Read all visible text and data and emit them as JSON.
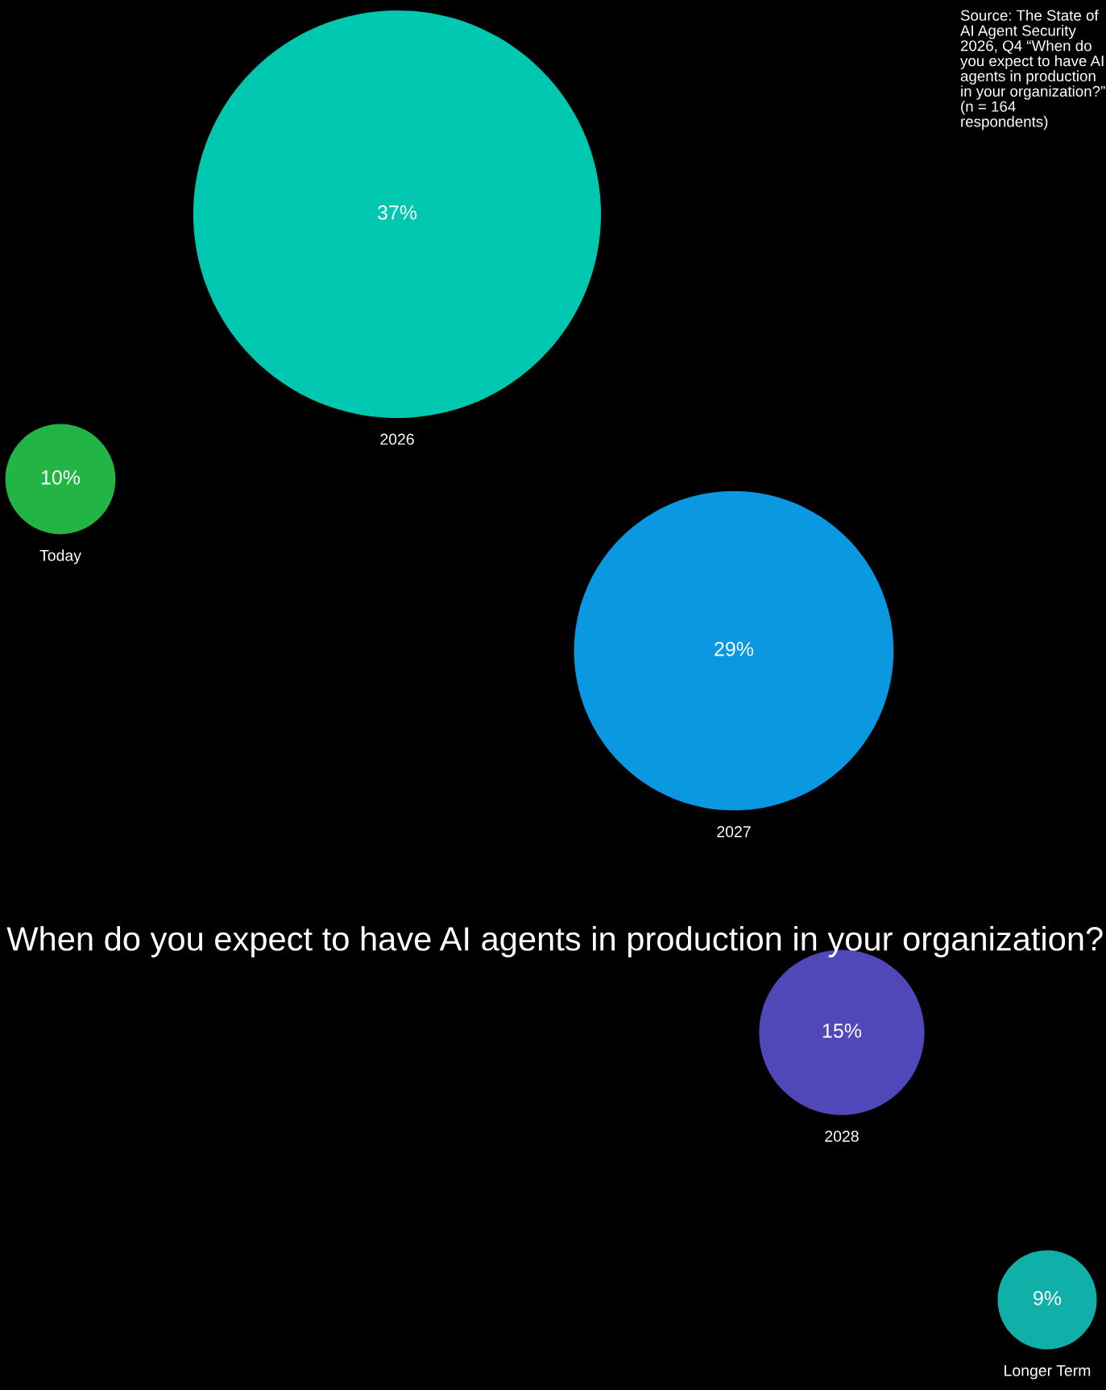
{
  "chart_data": {
    "type": "other",
    "title": "When do you expect to have AI agents in production in your organization?",
    "annotations": [
      "Source: The State of AI Agent Security 2026, Q4 “When do you expect to have AI agents in production in your organization?” (n = 164 respondents)"
    ],
    "categories": [
      "Today",
      "2026",
      "2027",
      "2028",
      "Longer Term"
    ],
    "values": [
      10,
      37,
      29,
      15,
      9
    ],
    "value_labels": [
      "10%",
      "37%",
      "29%",
      "15%",
      "9%"
    ],
    "colors": [
      "#22b545",
      "#00c8b0",
      "#0a98e0",
      "#5048b8",
      "#10b0a8"
    ]
  }
}
